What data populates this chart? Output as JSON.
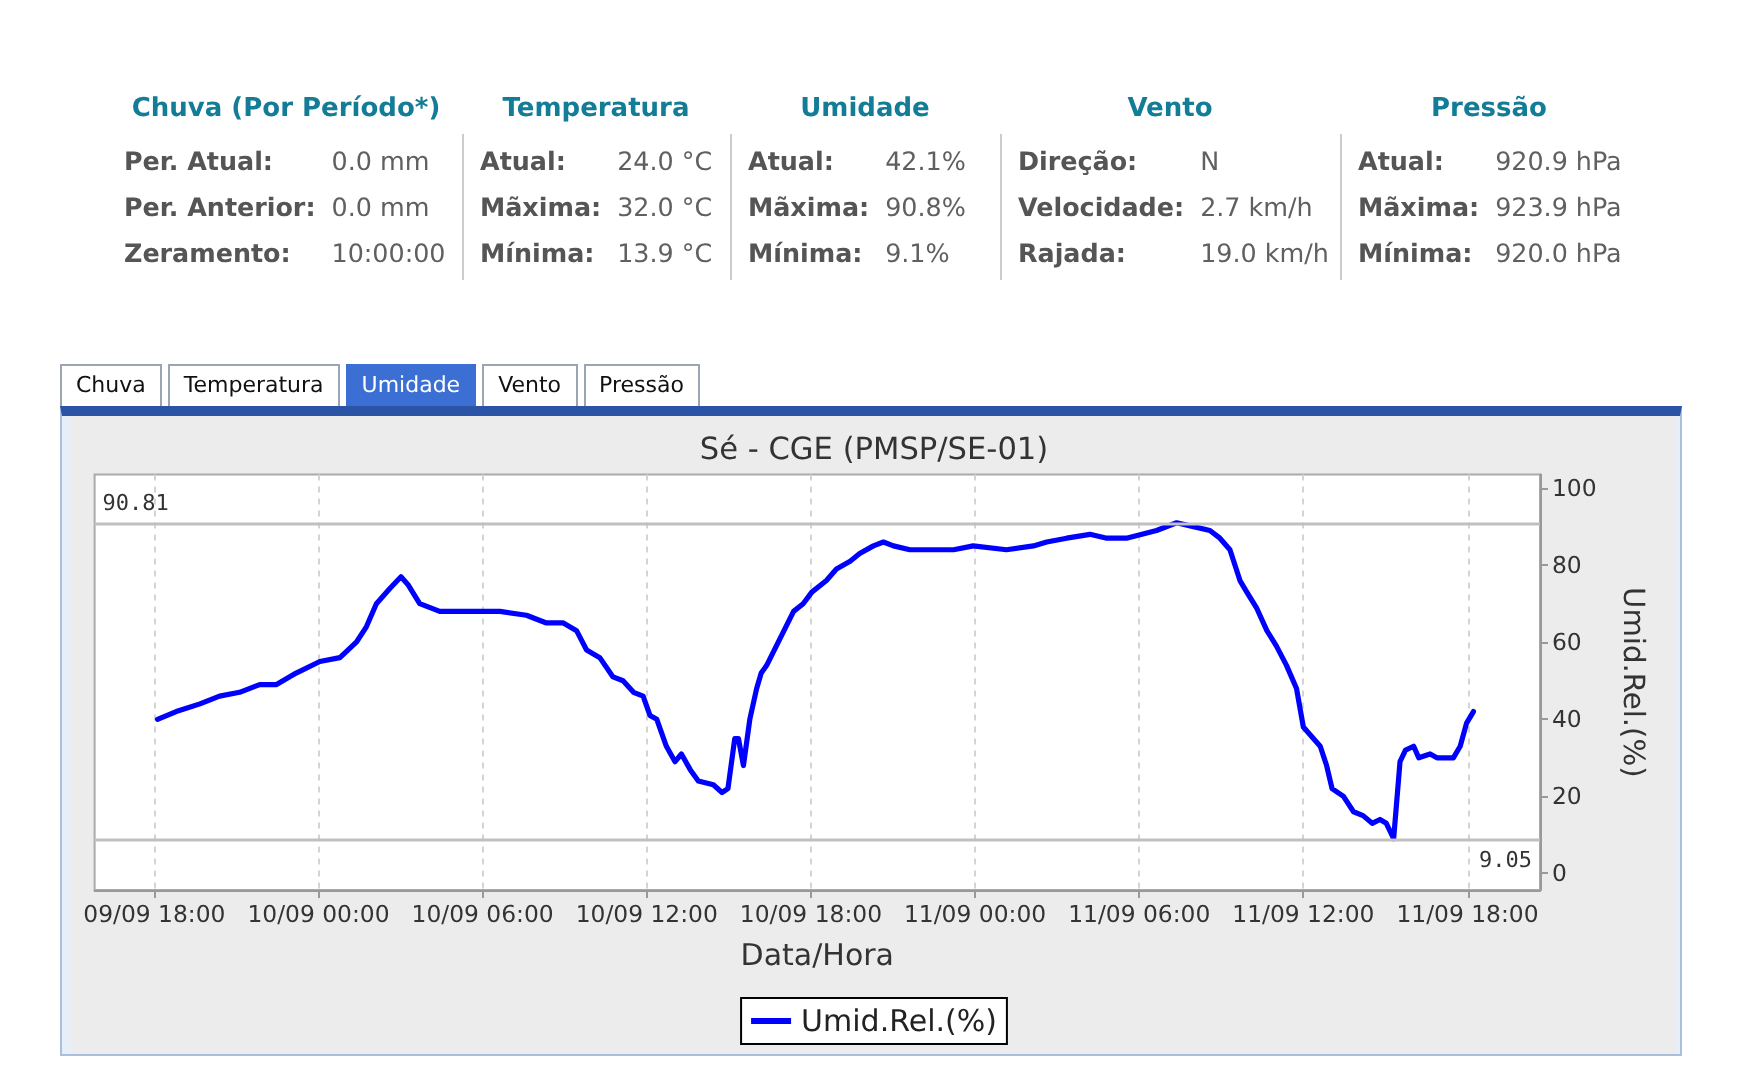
{
  "chart_data": [
    {
      "type": "other",
      "categories": [
        "Chuva (Por Período*)",
        "Temperatura",
        "Umidade",
        "Vento",
        "Pressão"
      ],
      "annotations": [
        "Per. Atual:",
        "0.0 mm",
        "Per. Anterior:",
        "0.0 mm",
        "Zeramento:",
        "10:00:00",
        "Atual:",
        "24.0 °C",
        "Mãxima:",
        "32.0 °C",
        "Mínima:",
        "13.9 °C",
        "Atual:",
        "42.1%",
        "Mãxima:",
        "90.8%",
        "Mínima:",
        "9.1%",
        "Direção:",
        "N",
        "Velocidade:",
        "2.7 km/h",
        "Rajada:",
        "19.0 km/h",
        "Atual:",
        "920.9 hPa",
        "Mãxima:",
        "923.9 hPa",
        "Mínima:",
        "920.0 hPa"
      ]
    },
    {
      "type": "other",
      "categories": [
        "Chuva",
        "Temperatura",
        "Umidade",
        "Vento",
        "Pressão"
      ],
      "colors": [
        "#ffffff",
        "#ffffff",
        "#3b6fd4",
        "#ffffff",
        "#ffffff"
      ]
    },
    {
      "type": "line",
      "title": "Sé - CGE (PMSP/SE-01)",
      "xlabel": "Data/Hora",
      "y2label": "Umid.Rel.(%)",
      "x": [
        "--09-09T18:07",
        "--09-09T18:48",
        "--09-09T19:40",
        "--09-09T20:23",
        "--09-09T21:07",
        "--09-09T21:51",
        "--09-09T22:28",
        "--09-09T23:11",
        "--09-10T00:03",
        "--09-10T00:47",
        "--09-10T01:23",
        "--09-10T01:45",
        "--09-10T02:07",
        "--09-10T02:37",
        "--09-10T03:01",
        "--09-10T03:16",
        "--09-10T03:42",
        "--09-10T04:26",
        "--09-10T05:10",
        "--09-10T06:16",
        "--09-10T06:38",
        "--09-10T07:36",
        "--09-10T08:20",
        "--09-10T08:57",
        "--09-10T09:26",
        "--09-10T09:48",
        "--09-10T10:17",
        "--09-10T10:46",
        "--09-10T11:08",
        "--09-10T11:31",
        "--09-10T11:52",
        "--09-10T12:07",
        "--09-10T12:22",
        "--09-10T12:43",
        "--09-10T13:02",
        "--09-10T13:16",
        "--09-10T13:35",
        "--09-10T13:53",
        "--09-10T14:26",
        "--09-10T14:45",
        "--09-10T14:58",
        "--09-10T15:13",
        "--09-10T15:21",
        "--09-10T15:32",
        "--09-10T15:46",
        "--09-10T16:01",
        "--09-10T16:11",
        "--09-10T16:23",
        "--09-10T16:44",
        "--09-10T17:22",
        "--09-10T17:43",
        "--09-10T18:02",
        "--09-10T18:34",
        "--09-10T18:56",
        "--09-10T19:26",
        "--09-10T19:47",
        "--09-10T20:17",
        "--09-10T20:39",
        "--09-10T21:01",
        "--09-10T21:37",
        "--09-10T22:14",
        "--09-10T23:13",
        "--09-10T23:56",
        "--09-11T01:09",
        "--09-11T02:08",
        "--09-11T02:37",
        "--09-11T03:21",
        "--09-11T04:12",
        "--09-11T04:49",
        "--09-11T05:32",
        "--09-11T06:38",
        "--09-11T07:22",
        "--09-11T07:59",
        "--09-11T08:35",
        "--09-11T08:57",
        "--09-11T09:19",
        "--09-11T09:41",
        "--09-11T09:56",
        "--09-11T10:17",
        "--09-11T10:40",
        "--09-11T11:01",
        "--09-11T11:23",
        "--09-11T11:45",
        "--09-11T12:00",
        "--09-11T12:22",
        "--09-11T12:37",
        "--09-11T12:51",
        "--09-11T13:03",
        "--09-11T13:28",
        "--09-11T13:50",
        "--09-11T14:11",
        "--09-11T14:31",
        "--09-11T14:48",
        "--09-11T15:02",
        "--09-11T15:18",
        "--09-11T15:32",
        "--09-11T15:44",
        "--09-11T16:02",
        "--09-11T16:13",
        "--09-11T16:38",
        "--09-11T16:53",
        "--09-11T17:07",
        "--09-11T17:29",
        "--09-11T17:44",
        "--09-11T17:58",
        "--09-11T18:13"
      ],
      "series": [
        {
          "name": "Umid.Rel.(%)",
          "color": "#0000ff",
          "axis": "y2",
          "values": [
            40,
            42,
            44,
            46,
            47,
            49,
            49,
            52,
            55,
            56,
            60,
            64,
            70,
            74,
            77,
            75,
            70,
            68,
            68,
            68,
            68,
            67,
            65,
            65,
            63,
            58,
            56,
            51,
            50,
            47,
            46,
            41,
            40,
            33,
            29,
            31,
            27,
            24,
            23,
            21,
            22,
            35,
            35,
            28,
            40,
            48,
            52,
            54,
            59,
            68,
            70,
            73,
            76,
            79,
            81,
            83,
            85,
            86,
            85,
            84,
            84,
            84,
            85,
            84,
            85,
            86,
            87,
            88,
            87,
            87,
            89,
            91,
            90,
            89,
            87,
            84,
            76,
            73,
            69,
            63,
            59,
            54,
            48,
            38,
            35,
            33,
            28,
            22,
            20,
            16,
            15,
            13,
            14,
            13,
            9,
            29,
            32,
            33,
            30,
            31,
            30,
            30,
            30,
            33,
            39,
            42
          ]
        }
      ],
      "xlim": [
        "--09-09T15:49",
        "--09-11T20:39"
      ],
      "xticks": [
        {
          "value": "--09-09T18:00",
          "label": "09/09 18:00"
        },
        {
          "value": "--09-10T00:00",
          "label": "10/09 00:00"
        },
        {
          "value": "--09-10T06:00",
          "label": "10/09 06:00"
        },
        {
          "value": "--09-10T12:00",
          "label": "10/09 12:00"
        },
        {
          "value": "--09-10T18:00",
          "label": "10/09 18:00"
        },
        {
          "value": "--09-11T00:00",
          "label": "11/09 00:00"
        },
        {
          "value": "--09-11T06:00",
          "label": "11/09 06:00"
        },
        {
          "value": "--09-11T12:00",
          "label": "11/09 12:00"
        },
        {
          "value": "--09-11T18:00",
          "label": "11/09 18:00"
        }
      ],
      "y2lim": [
        -4.3,
        103.5
      ],
      "y2ticks": [
        0,
        20,
        40,
        60,
        80,
        100
      ],
      "ref_lines": [
        {
          "axis": "y2",
          "value": 90.81,
          "label": "90.81",
          "color": "#c0c0c0"
        },
        {
          "axis": "y2",
          "value": 9.05,
          "label": "9.05",
          "color": "#c0c0c0"
        }
      ],
      "grid": "x",
      "legend": "bottom",
      "marker": "none"
    }
  ]
}
